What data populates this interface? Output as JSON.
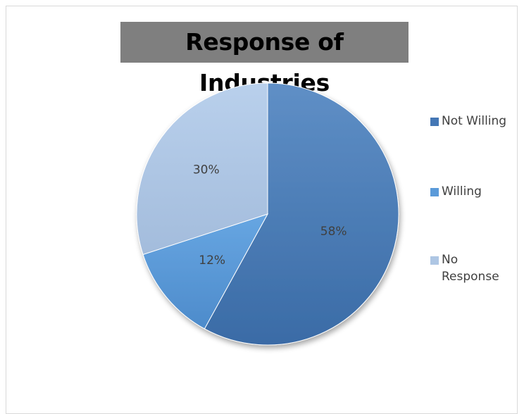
{
  "chart_data": {
    "type": "pie",
    "title": "Response of Industries",
    "categories": [
      "Not Willing",
      "Willing",
      "No Response"
    ],
    "values": [
      58,
      12,
      30
    ],
    "labels": [
      "58%",
      "12%",
      "30%"
    ],
    "colors": [
      "#4477b5",
      "#5a9ad9",
      "#aec6e4"
    ],
    "legend_position": "right"
  },
  "legend": {
    "items": [
      {
        "label": "Not Willing",
        "color": "#4477b5"
      },
      {
        "label": "Willing",
        "color": "#5a9ad9"
      },
      {
        "label": "No Response",
        "color": "#aec6e4"
      }
    ]
  }
}
